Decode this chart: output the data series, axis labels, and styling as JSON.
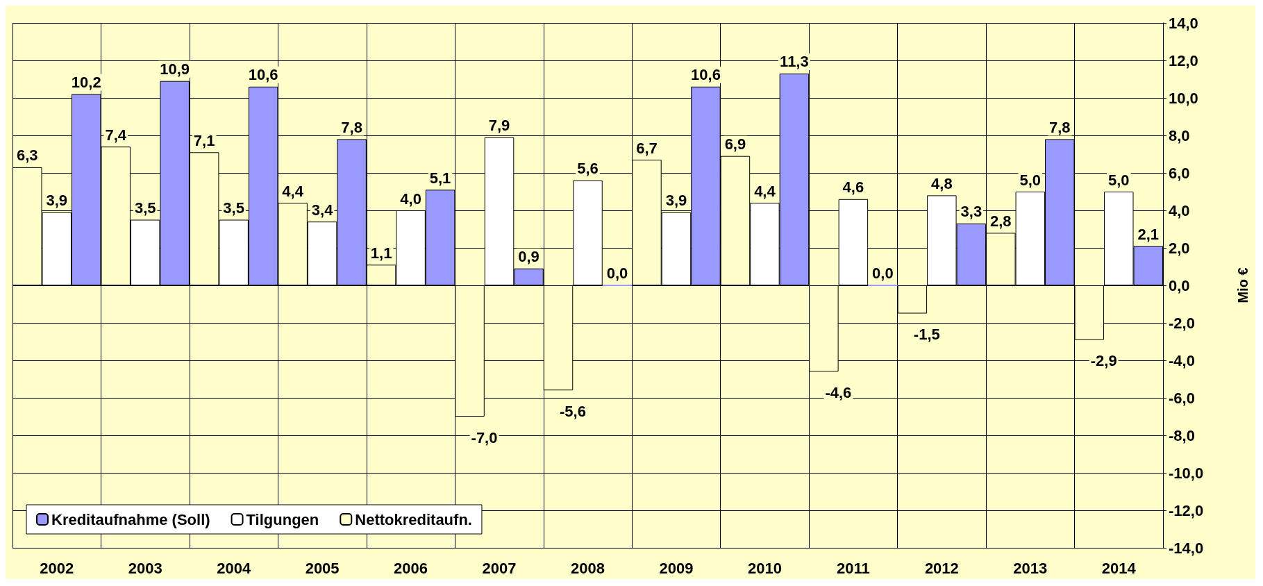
{
  "chart_data": {
    "type": "bar",
    "ylabel": "Mio €",
    "categories": [
      "2002",
      "2003",
      "2004",
      "2005",
      "2006",
      "2007",
      "2008",
      "2009",
      "2010",
      "2011",
      "2012",
      "2013",
      "2014"
    ],
    "series": [
      {
        "name": "Nettokreditaufn.",
        "color": "#ffffcc",
        "values": [
          6.3,
          7.4,
          7.1,
          4.4,
          1.1,
          -7.0,
          -5.6,
          6.7,
          6.9,
          -4.6,
          -1.5,
          2.8,
          -2.9
        ],
        "value_labels": [
          "6,3",
          "7,4",
          "7,1",
          "4,4",
          "1,1",
          "-7,0",
          "-5,6",
          "6,7",
          "6,9",
          "-4,6",
          "-1,5",
          "2,8",
          "-2,9"
        ]
      },
      {
        "name": "Tilgungen",
        "color": "#ffffff",
        "values": [
          3.9,
          3.5,
          3.5,
          3.4,
          4.0,
          7.9,
          5.6,
          3.9,
          4.4,
          4.6,
          4.8,
          5.0,
          5.0
        ],
        "value_labels": [
          "3,9",
          "3,5",
          "3,5",
          "3,4",
          "4,0",
          "7,9",
          "5,6",
          "3,9",
          "4,4",
          "4,6",
          "4,8",
          "5,0",
          "5,0"
        ]
      },
      {
        "name": "Kreditaufnahme (Soll)",
        "color": "#9999ff",
        "values": [
          10.2,
          10.9,
          10.6,
          7.8,
          5.1,
          0.9,
          0.0,
          10.6,
          11.3,
          0.0,
          3.3,
          7.8,
          2.1
        ],
        "value_labels": [
          "10,2",
          "10,9",
          "10,6",
          "7,8",
          "5,1",
          "0,9",
          "0,0",
          "10,6",
          "11,3",
          "0,0",
          "3,3",
          "7,8",
          "2,1"
        ]
      }
    ],
    "ylim": [
      -14,
      14
    ],
    "yticks": [
      {
        "value": -14,
        "label": "-14,0"
      },
      {
        "value": -12,
        "label": "-12,0"
      },
      {
        "value": -10,
        "label": "-10,0"
      },
      {
        "value": -8,
        "label": "-8,0"
      },
      {
        "value": -6,
        "label": "-6,0"
      },
      {
        "value": -4,
        "label": "-4,0"
      },
      {
        "value": -2,
        "label": "-2,0"
      },
      {
        "value": 0,
        "label": "0,0"
      },
      {
        "value": 2,
        "label": "2,0"
      },
      {
        "value": 4,
        "label": "4,0"
      },
      {
        "value": 6,
        "label": "6,0"
      },
      {
        "value": 8,
        "label": "8,0"
      },
      {
        "value": 10,
        "label": "10,0"
      },
      {
        "value": 12,
        "label": "12,0"
      },
      {
        "value": 14,
        "label": "14,0"
      }
    ],
    "grid": true,
    "legend": "bottom left"
  }
}
